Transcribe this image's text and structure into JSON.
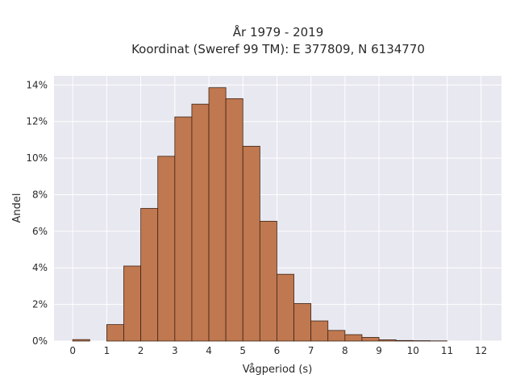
{
  "chart_data": {
    "type": "bar",
    "title_lines": [
      "År 1979 - 2019",
      "Koordinat (Sweref 99 TM): E 377809, N 6134770"
    ],
    "xlabel": "Vågperiod (s)",
    "ylabel": "Andel",
    "bin_width": 0.5,
    "bins": [
      {
        "x0": 0.0,
        "value": 0.08
      },
      {
        "x0": 0.5,
        "value": 0.0
      },
      {
        "x0": 1.0,
        "value": 0.9
      },
      {
        "x0": 1.5,
        "value": 4.1
      },
      {
        "x0": 2.0,
        "value": 7.25
      },
      {
        "x0": 2.5,
        "value": 10.1
      },
      {
        "x0": 3.0,
        "value": 12.25
      },
      {
        "x0": 3.5,
        "value": 12.95
      },
      {
        "x0": 4.0,
        "value": 13.85
      },
      {
        "x0": 4.5,
        "value": 13.25
      },
      {
        "x0": 5.0,
        "value": 10.65
      },
      {
        "x0": 5.5,
        "value": 6.55
      },
      {
        "x0": 6.0,
        "value": 3.65
      },
      {
        "x0": 6.5,
        "value": 2.05
      },
      {
        "x0": 7.0,
        "value": 1.1
      },
      {
        "x0": 7.5,
        "value": 0.58
      },
      {
        "x0": 8.0,
        "value": 0.35
      },
      {
        "x0": 8.5,
        "value": 0.2
      },
      {
        "x0": 9.0,
        "value": 0.07
      },
      {
        "x0": 9.5,
        "value": 0.03
      },
      {
        "x0": 10.0,
        "value": 0.02
      },
      {
        "x0": 10.5,
        "value": 0.01
      }
    ],
    "xlim": [
      -0.55,
      12.6
    ],
    "ylim": [
      0,
      14.5
    ],
    "x_ticks": [
      0,
      1,
      2,
      3,
      4,
      5,
      6,
      7,
      8,
      9,
      10,
      11,
      12
    ],
    "x_tick_labels": [
      "0",
      "1",
      "2",
      "3",
      "4",
      "5",
      "6",
      "7",
      "8",
      "9",
      "10",
      "11",
      "12"
    ],
    "y_ticks": [
      0,
      2,
      4,
      6,
      8,
      10,
      12,
      14
    ],
    "y_tick_labels": [
      "0%",
      "2%",
      "4%",
      "6%",
      "8%",
      "10%",
      "12%",
      "14%"
    ],
    "grid": true,
    "colors": {
      "bar_fill": "#c07850",
      "bar_edge": "#3d2416",
      "plot_background": "#e8e8f0",
      "grid": "#ffffff"
    }
  }
}
